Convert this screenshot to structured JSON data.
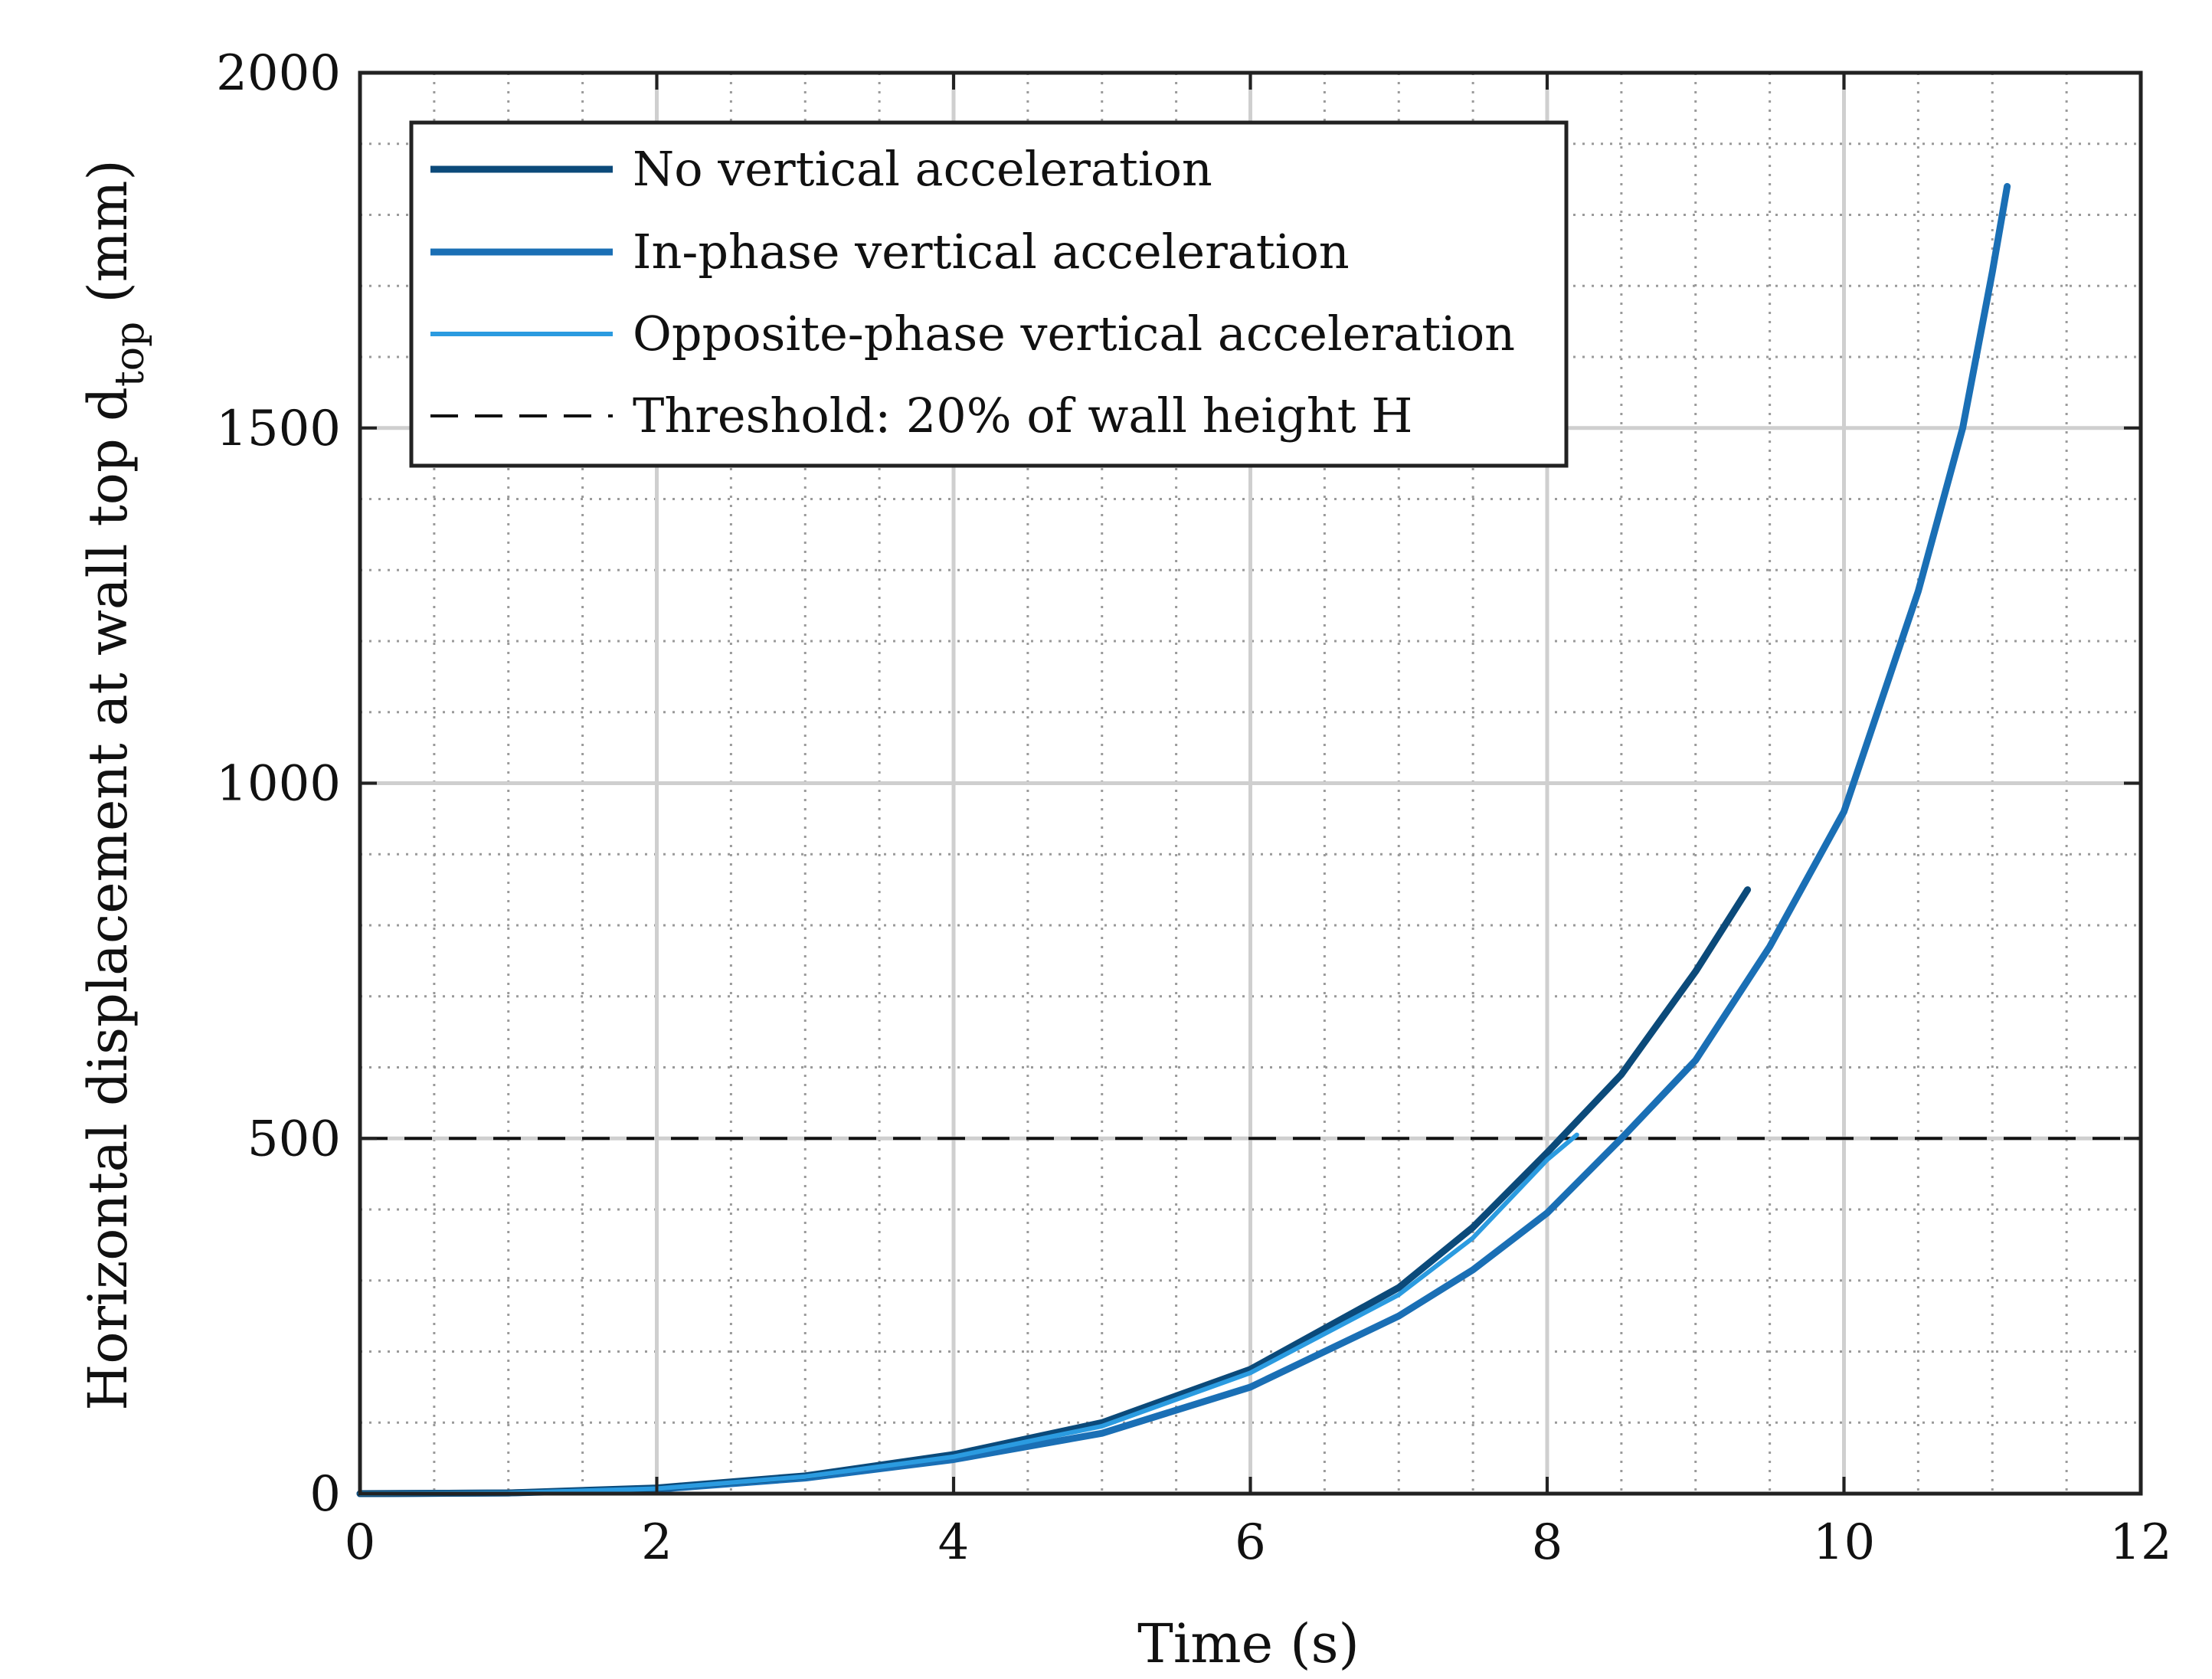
{
  "chart_data": {
    "type": "line",
    "title": "",
    "xlabel": "Time (s)",
    "ylabel_main": "Horizontal displacement at wall top d",
    "ylabel_sub": "top",
    "ylabel_unit": "(mm)",
    "xlim": [
      0,
      12
    ],
    "ylim": [
      0,
      2000
    ],
    "xticks": [
      0,
      2,
      4,
      6,
      8,
      10,
      12
    ],
    "yticks": [
      0,
      500,
      1000,
      1500,
      2000
    ],
    "grid": true,
    "minor_grid": true,
    "legend_position": "top-left",
    "series": [
      {
        "name": "No vertical acceleration",
        "color": "#0b4a7a",
        "style": "solid",
        "points": [
          [
            0,
            0
          ],
          [
            1,
            1
          ],
          [
            2,
            8
          ],
          [
            3,
            25
          ],
          [
            4,
            55
          ],
          [
            5,
            100
          ],
          [
            6,
            175
          ],
          [
            7,
            290
          ],
          [
            7.5,
            375
          ],
          [
            8,
            480
          ],
          [
            8.5,
            590
          ],
          [
            9,
            735
          ],
          [
            9.35,
            850
          ]
        ]
      },
      {
        "name": "In-phase vertical acceleration",
        "color": "#1a6fb5",
        "style": "solid",
        "points": [
          [
            0,
            0
          ],
          [
            1,
            1
          ],
          [
            2,
            6
          ],
          [
            3,
            22
          ],
          [
            4,
            48
          ],
          [
            5,
            85
          ],
          [
            6,
            150
          ],
          [
            7,
            250
          ],
          [
            7.5,
            315
          ],
          [
            8,
            395
          ],
          [
            8.5,
            500
          ],
          [
            9,
            610
          ],
          [
            9.5,
            770
          ],
          [
            10,
            960
          ],
          [
            10.5,
            1270
          ],
          [
            10.8,
            1500
          ],
          [
            11,
            1720
          ],
          [
            11.1,
            1840
          ]
        ]
      },
      {
        "name": "Opposite-phase vertical acceleration",
        "color": "#2b9be0",
        "style": "solid",
        "points": [
          [
            0,
            0
          ],
          [
            1,
            1
          ],
          [
            2,
            7
          ],
          [
            3,
            24
          ],
          [
            4,
            52
          ],
          [
            5,
            95
          ],
          [
            6,
            170
          ],
          [
            7,
            280
          ],
          [
            7.5,
            360
          ],
          [
            8,
            470
          ],
          [
            8.2,
            505
          ]
        ]
      },
      {
        "name": "Threshold: 20% of wall height H",
        "color": "#111111",
        "style": "dashed",
        "points": [
          [
            0,
            500
          ],
          [
            12,
            500
          ]
        ]
      }
    ]
  }
}
